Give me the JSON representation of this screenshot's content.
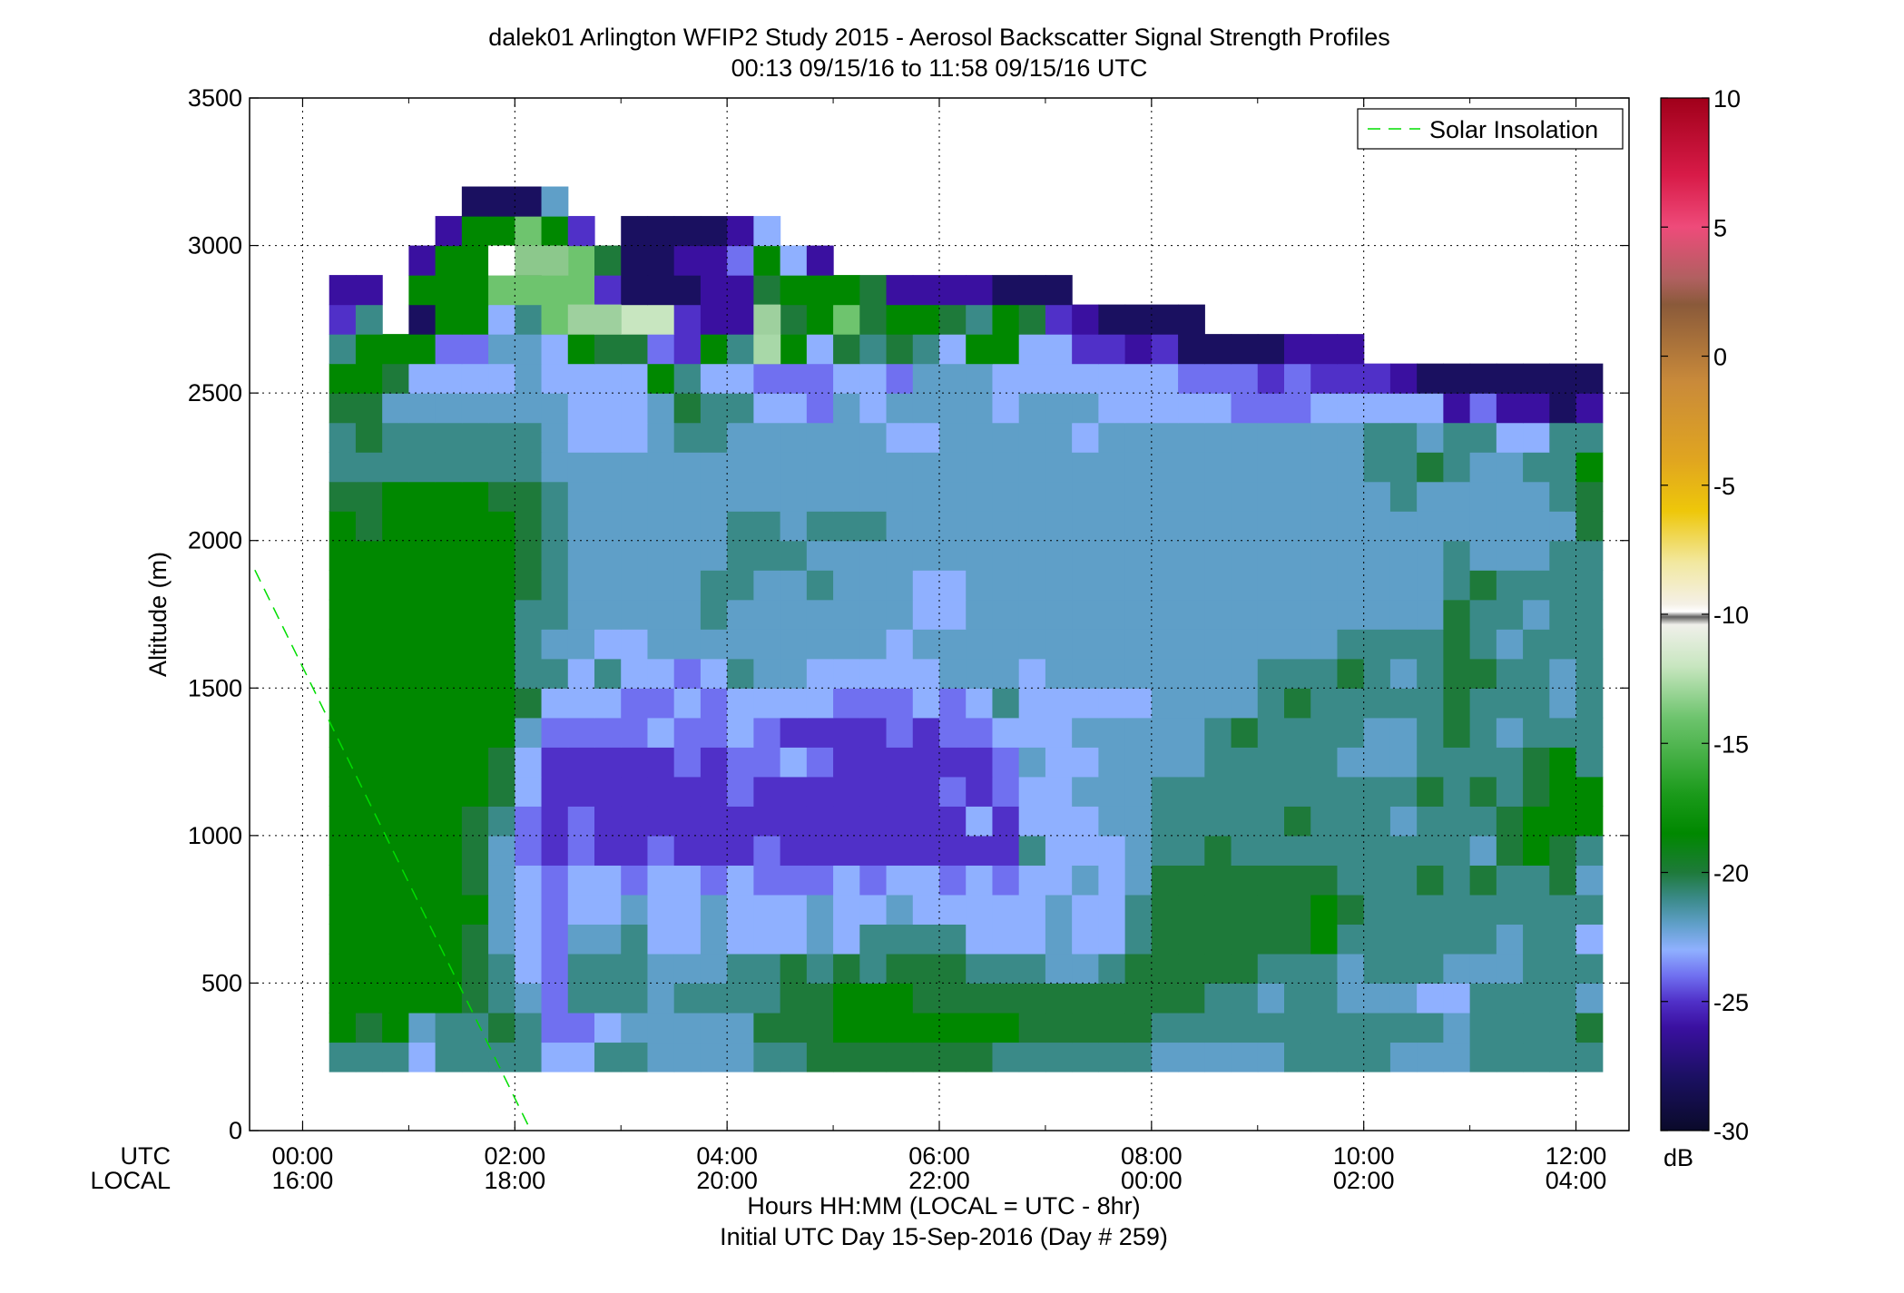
{
  "chart_data": {
    "type": "heatmap",
    "title": "dalek01 Arlington WFIP2 Study 2015 - Aerosol Backscatter Signal Strength Profiles",
    "subtitle": "00:13 09/15/16 to 11:58 09/15/16  UTC",
    "ylabel": "Altitude (m)",
    "xlabel": "Hours HH:MM  (LOCAL = UTC - 8hr)",
    "xlabel2": "Initial UTC Day 15-Sep-2016 (Day # 259)",
    "x_row_labels": [
      "UTC",
      "LOCAL"
    ],
    "x_ticks_utc": [
      "00:00",
      "02:00",
      "04:00",
      "06:00",
      "08:00",
      "10:00",
      "12:00"
    ],
    "x_ticks_local": [
      "16:00",
      "18:00",
      "20:00",
      "22:00",
      "00:00",
      "02:00",
      "04:00"
    ],
    "x_tick_hours": [
      0,
      2,
      4,
      6,
      8,
      10,
      12
    ],
    "xlim_hours": [
      -0.5,
      12.5
    ],
    "y_ticks": [
      0,
      500,
      1000,
      1500,
      2000,
      2500,
      3000,
      3500
    ],
    "ylim": [
      0,
      3500
    ],
    "grid": true,
    "legend": {
      "label": "Solar Insolation",
      "position": "top-right",
      "color": "#00dd00",
      "style": "dashed"
    },
    "solar_line": {
      "x_hours": [
        -0.45,
        2.15
      ],
      "y_m": [
        1900,
        0
      ]
    },
    "colorbar": {
      "unit": "dB",
      "ticks": [
        10,
        5,
        0,
        -5,
        -10,
        -15,
        -20,
        -25,
        -30
      ],
      "range": [
        -30,
        10
      ],
      "colors": [
        {
          "v": 10,
          "c": "#a0001a"
        },
        {
          "v": 7,
          "c": "#d81b48"
        },
        {
          "v": 5,
          "c": "#ee4b7a"
        },
        {
          "v": 3,
          "c": "#b06060"
        },
        {
          "v": 2,
          "c": "#8a5a3a"
        },
        {
          "v": -1,
          "c": "#c98a3a"
        },
        {
          "v": -4,
          "c": "#e0a520"
        },
        {
          "v": -6,
          "c": "#eec70a"
        },
        {
          "v": -8,
          "c": "#f2e8a0"
        },
        {
          "v": -9.6,
          "c": "#f4f0e6"
        },
        {
          "v": -9.9,
          "c": "#ffffff"
        },
        {
          "v": -10.1,
          "c": "#606060"
        },
        {
          "v": -10.4,
          "c": "#f0f0ea"
        },
        {
          "v": -12,
          "c": "#c8e6c0"
        },
        {
          "v": -14,
          "c": "#6ec46e"
        },
        {
          "v": -17,
          "c": "#1a9a1a"
        },
        {
          "v": -18.5,
          "c": "#008800"
        },
        {
          "v": -20,
          "c": "#1e7a3a"
        },
        {
          "v": -21,
          "c": "#3a8a88"
        },
        {
          "v": -22,
          "c": "#5f9fc8"
        },
        {
          "v": -23,
          "c": "#8fb0ff"
        },
        {
          "v": -24,
          "c": "#7070f0"
        },
        {
          "v": -25,
          "c": "#5030c8"
        },
        {
          "v": -26,
          "c": "#3a10a0"
        },
        {
          "v": -28,
          "c": "#1a1060"
        },
        {
          "v": -30,
          "c": "#0a0a2a"
        }
      ]
    },
    "heat_grid": {
      "x_start_hours": 0.25,
      "x_step_hours": 0.25,
      "y_start_m": 200,
      "y_step_m": 100,
      "levels": {
        "W": -9.9,
        "a": -12,
        "b": -14,
        "c": -16,
        "g": -18.5,
        "d": -20,
        "t": -21,
        "s": -22,
        "L": -23,
        "p": -24,
        "P": -25,
        "V": -26,
        "N": -28
      },
      "rows": [
        "tttLttttLLttssssttdddddddttttttsssssttttsssttttt",
        "gdgsttdtppLsssssdddgggggggdddddtttttttttttsttttd",
        "gggggdtsptttsttttddgggdddddddddddttsttsssLLtttts",
        "gggggdtLptttsssttdtdtdddtttsstdddddtttstttsssttt",
        "gggggdsLpsstLLsLLLsLttttLLLsLLtddddddgttttttsttL",
        "ggggggsLpLLsLLsLLLsLLsLLLLLsLLtddddddgdttttttttt",
        "gggggdsLpLLpLLpLpppLpLLpLpLLsLsdddddddtttdtdttds",
        "gggggdspPpPPpPPPpPPPPPPPPPtLLLsttdtttttttttsdgdt",
        "gggggdtpPpPPPPPPPPPPPPPPLPLLLsstttttdtttstttdggg",
        "ggggggdLPPPPPPPpPPPPPPPpPpLLsssttttttttttdtdtdgg",
        "ggggggdLPPPPPpPppLpPPPPPPpsLLsssstttttsssttttdgt",
        "gggggggsppppLppLpPPPPpPppLLLssssstdttttsstdtsttt",
        "gggggggdLLLppLpLLLLpppLpLtLLLLLsssstdtttttdtttst",
        "gggggggttLtLLpLtssLLLLLsssLsssssssstttdtstddttst",
        "gggggggtssLLsssssssssLssssssssssssssssttttdtsttt",
        "gggggggttssssstsssssssLLssssssssssssssssssdttstt",
        "gggggggdtsssssttsstsssLLsssssssssssssssssstdtttt",
        "gggggggdtsssssstttsssssssssssssssssssssssstssstt",
        "gdgggggdtssssssttstttssssssssssssssssssssssssssd",
        "ddggggddtssssssssssssssssssssssssssssssstssssstd",
        "ttttttttsssssssssssssssssssssssssssssssttdtssttg",
        "tdttttttsLLLsttssssssLLsssssLssssssssssttsttLLtt",
        "ddsssssssLLLsdttLLpsLssssLsssLLLLLpppLLLLLVpVVNV",
        "ggdLLLLsLLLLgtLLpppLLpsssLLLLLLLpppPpPPPVNNNNNNN",
        "tgggppssLgddpPgtbgLdtdtLggLLPPVPNNNNVVV",
        "Pt NggLtsdbaaPVVPdgbdggdtgdPVNNNN",
        "VV gggbbbbPNNNVVdgggdVVVVNNN",
        "   Vgggg bdNNVVpgLV",
        "    VggbgP NNNNVL",
        "     NNNs"
      ],
      "special_cells": [
        {
          "col": 6,
          "row": 27,
          "fill": "#ffffff"
        },
        {
          "col": 7,
          "row": 27,
          "fill": "#8cc88c"
        },
        {
          "col": 8,
          "row": 27,
          "fill": "#8cc88c"
        },
        {
          "col": 8,
          "row": 25,
          "fill": "#6ec46e"
        },
        {
          "col": 16,
          "row": 24,
          "fill": "#a8d8a8"
        },
        {
          "col": 16,
          "row": 25,
          "fill": "#9ed09e"
        },
        {
          "col": 9,
          "row": 25,
          "fill": "#9ed09e"
        },
        {
          "col": 10,
          "row": 25,
          "fill": "#9ed09e"
        }
      ]
    }
  }
}
